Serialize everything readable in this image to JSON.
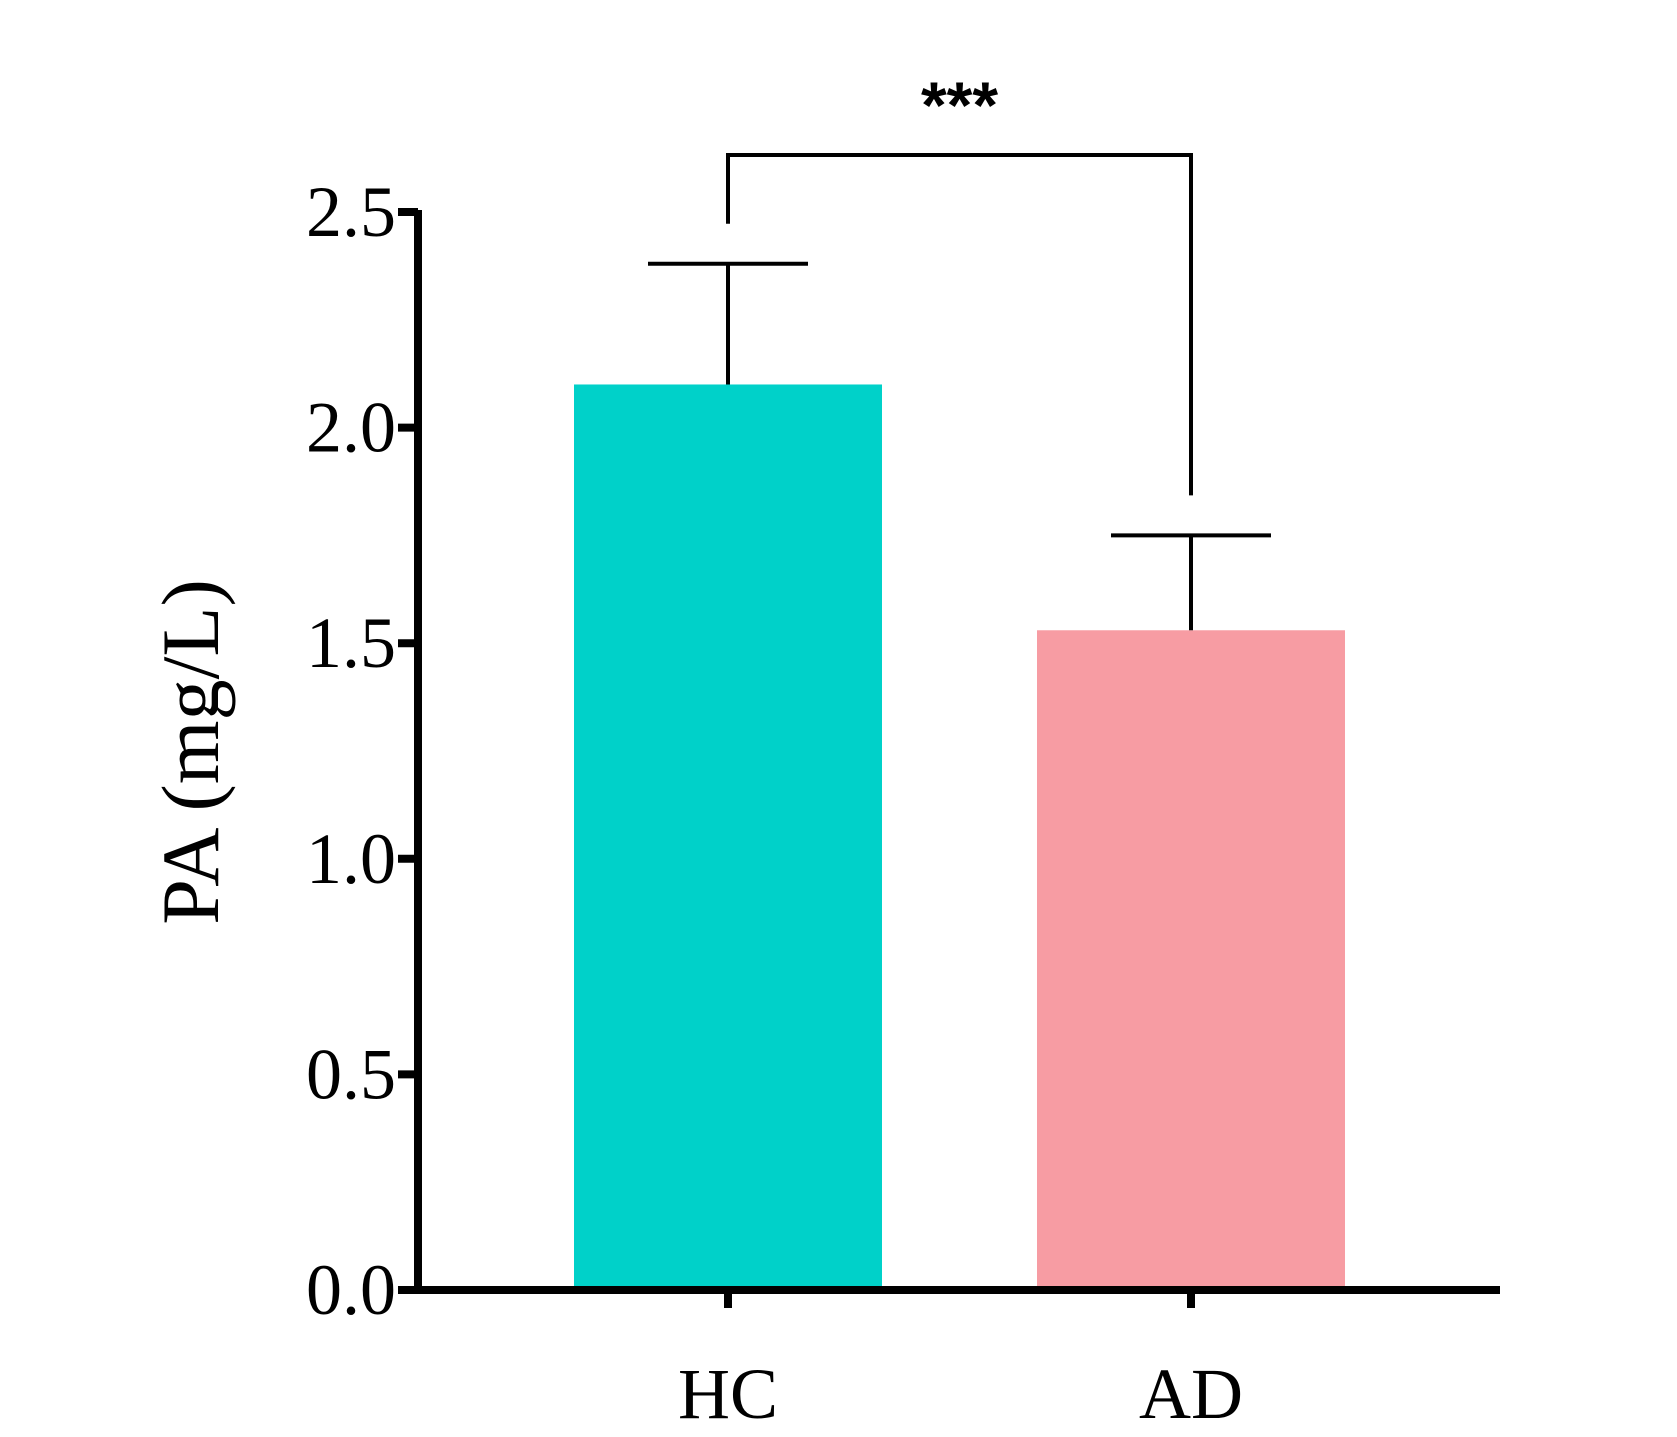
{
  "chart_data": {
    "type": "bar",
    "categories": [
      "HC",
      "AD"
    ],
    "values": [
      2.1,
      1.53
    ],
    "error_plus": [
      0.28,
      0.22
    ],
    "colors": [
      "#00d1c9",
      "#f79ca3"
    ],
    "ylabel": "PA (mg/L)",
    "xlabel": "",
    "ylim": [
      0,
      2.5
    ],
    "yticks": [
      "0.0",
      "0.5",
      "1.0",
      "1.5",
      "2.0",
      "2.5"
    ],
    "grid": false,
    "significance": {
      "between": [
        "HC",
        "AD"
      ],
      "label": "***"
    }
  }
}
